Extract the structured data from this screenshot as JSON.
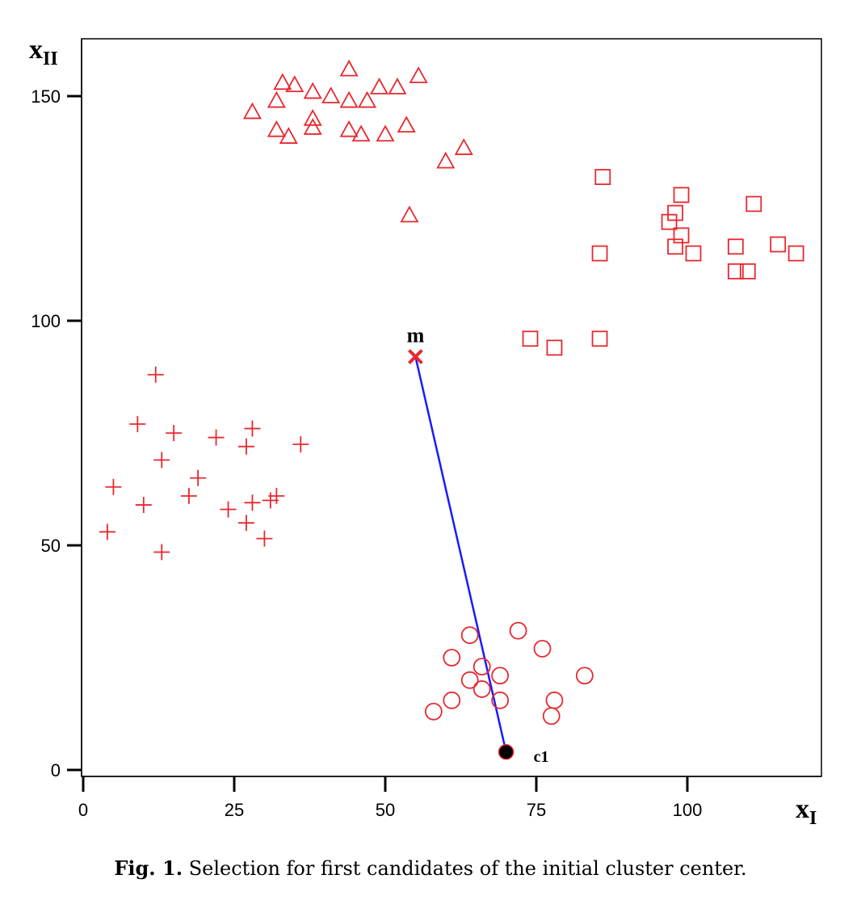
{
  "chart_data": {
    "type": "scatter",
    "xlabel": {
      "main": "x",
      "sub": "I"
    },
    "ylabel": {
      "main": "x",
      "sub": "II"
    },
    "xlim": [
      0,
      122
    ],
    "ylim": [
      -1,
      163
    ],
    "xticks": [
      0,
      25,
      50,
      75,
      100
    ],
    "yticks": [
      0,
      50,
      100,
      150
    ],
    "grid": false,
    "marker_color": "#e8282f",
    "series": [
      {
        "marker": "triangle",
        "points": [
          [
            44,
            156
          ],
          [
            33,
            153
          ],
          [
            35,
            152.5
          ],
          [
            55.5,
            154.5
          ],
          [
            38,
            151
          ],
          [
            41,
            150
          ],
          [
            44,
            149
          ],
          [
            47,
            149
          ],
          [
            49,
            152
          ],
          [
            52,
            152
          ],
          [
            28,
            146.5
          ],
          [
            32,
            149
          ],
          [
            38,
            145
          ],
          [
            38,
            143
          ],
          [
            32,
            142.5
          ],
          [
            44,
            142.5
          ],
          [
            34,
            141
          ],
          [
            46,
            141.5
          ],
          [
            50,
            141.5
          ],
          [
            53.5,
            143.5
          ],
          [
            60,
            135.5
          ],
          [
            63,
            138.5
          ],
          [
            54,
            123.5
          ]
        ]
      },
      {
        "marker": "square",
        "points": [
          [
            86,
            132
          ],
          [
            99,
            128
          ],
          [
            111,
            126
          ],
          [
            98,
            124
          ],
          [
            97,
            122
          ],
          [
            99,
            119
          ],
          [
            98,
            116.5
          ],
          [
            101,
            115
          ],
          [
            108,
            116.5
          ],
          [
            115,
            117
          ],
          [
            118,
            115
          ],
          [
            108,
            111
          ],
          [
            110,
            111
          ],
          [
            85.5,
            115
          ],
          [
            74,
            96
          ],
          [
            78,
            94
          ],
          [
            85.5,
            96
          ]
        ]
      },
      {
        "marker": "plus",
        "points": [
          [
            12,
            88
          ],
          [
            9,
            77
          ],
          [
            28,
            76
          ],
          [
            15,
            75
          ],
          [
            22,
            74
          ],
          [
            27,
            72
          ],
          [
            36,
            72.5
          ],
          [
            13,
            69
          ],
          [
            19,
            65
          ],
          [
            5,
            63
          ],
          [
            17.5,
            61
          ],
          [
            10,
            59
          ],
          [
            24,
            58
          ],
          [
            28,
            59.5
          ],
          [
            31,
            60
          ],
          [
            32,
            61
          ],
          [
            27,
            55
          ],
          [
            30,
            51.5
          ],
          [
            4,
            53
          ],
          [
            13,
            48.5
          ]
        ]
      },
      {
        "marker": "circle",
        "points": [
          [
            72,
            31
          ],
          [
            64,
            30
          ],
          [
            76,
            27
          ],
          [
            61,
            25
          ],
          [
            66,
            23
          ],
          [
            69,
            21
          ],
          [
            83,
            21
          ],
          [
            64,
            20
          ],
          [
            66,
            18
          ],
          [
            69,
            15.5
          ],
          [
            78,
            15.5
          ],
          [
            61,
            15.5
          ],
          [
            58,
            13
          ],
          [
            77.5,
            12
          ]
        ]
      }
    ],
    "special_points": [
      {
        "label": "m",
        "x": 55,
        "y": 92,
        "marker": "x",
        "color": "#e8282f"
      },
      {
        "label": "c1",
        "x": 70,
        "y": 4,
        "marker": "filled-circle",
        "color": "#000000"
      }
    ],
    "line": {
      "from": "m",
      "to": "c1",
      "color": "#1a1aff"
    }
  },
  "caption": {
    "label": "Fig. 1.",
    "text": "Selection for first candidates of the initial cluster center."
  }
}
